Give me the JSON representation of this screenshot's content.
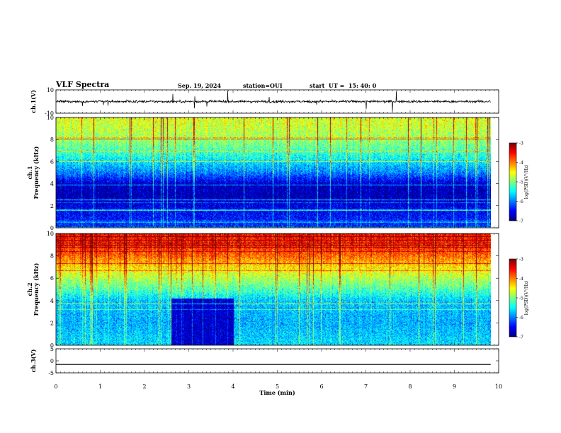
{
  "header": {
    "title": "VLF Spectra",
    "date": "Sep. 19, 2024",
    "station": "station=OUI",
    "start": "start  UT =  15: 40: 0"
  },
  "chart_data": {
    "type": "heatmap",
    "xlabel": "Time  (min)",
    "xlim": [
      0,
      10
    ],
    "x_ticks": [
      "0",
      "1",
      "2",
      "3",
      "4",
      "5",
      "6",
      "7",
      "8",
      "9",
      "10"
    ],
    "data_end_min": 9.82,
    "panels": [
      {
        "id": "ch1_waveform",
        "type": "line",
        "ylabel": "ch.1(V)",
        "ylim": [
          -10,
          10
        ],
        "y_ticks": [
          "10",
          "-10"
        ],
        "mean": 0,
        "amplitude": 1.5
      },
      {
        "id": "ch1_spectrum",
        "type": "heatmap",
        "ylabel": "ch.1\nFrequency  (kHz)",
        "ylim": [
          0,
          10
        ],
        "y_ticks": [
          "0",
          "2",
          "4",
          "6",
          "8",
          "10"
        ],
        "colorbar": {
          "label": "log(PSD)(V²/Hz)",
          "range": [
            -7,
            -3
          ],
          "ticks": [
            "-3",
            "-4",
            "-5",
            "-6",
            "-7"
          ]
        },
        "profile": [
          {
            "f": 0,
            "v": -6.3
          },
          {
            "f": 1.5,
            "v": -6.5
          },
          {
            "f": 3,
            "v": -6.8
          },
          {
            "f": 4,
            "v": -6.7
          },
          {
            "f": 5,
            "v": -6.0
          },
          {
            "f": 6,
            "v": -5.6
          },
          {
            "f": 7,
            "v": -5.2
          },
          {
            "f": 8,
            "v": -4.9
          },
          {
            "f": 9,
            "v": -4.7
          },
          {
            "f": 10,
            "v": -4.6
          }
        ]
      },
      {
        "id": "ch2_spectrum",
        "type": "heatmap",
        "ylabel": "ch.2\nFrequency  (kHz)",
        "ylim": [
          0,
          10
        ],
        "y_ticks": [
          "0",
          "2",
          "4",
          "6",
          "8",
          "10"
        ],
        "colorbar": {
          "label": "log(PSD)(V²/Hz)",
          "range": [
            -7,
            -3
          ],
          "ticks": [
            "-3",
            "-4",
            "-5",
            "-6",
            "-7"
          ]
        },
        "profile": [
          {
            "f": 0,
            "v": -5.6
          },
          {
            "f": 2,
            "v": -5.8
          },
          {
            "f": 4,
            "v": -5.7
          },
          {
            "f": 5,
            "v": -5.2
          },
          {
            "f": 6,
            "v": -4.8
          },
          {
            "f": 7,
            "v": -4.4
          },
          {
            "f": 8,
            "v": -3.9
          },
          {
            "f": 9,
            "v": -3.6
          },
          {
            "f": 10,
            "v": -3.5
          }
        ],
        "quiet_interval_min": [
          2.6,
          4.0
        ],
        "quiet_level_below_4kHz": -6.7
      },
      {
        "id": "ch3_waveform",
        "type": "line",
        "ylabel": "ch.3(V)",
        "ylim": [
          -5,
          5
        ],
        "y_ticks": [
          "5",
          "0",
          "-5"
        ],
        "constant_value": -1.5
      }
    ]
  }
}
